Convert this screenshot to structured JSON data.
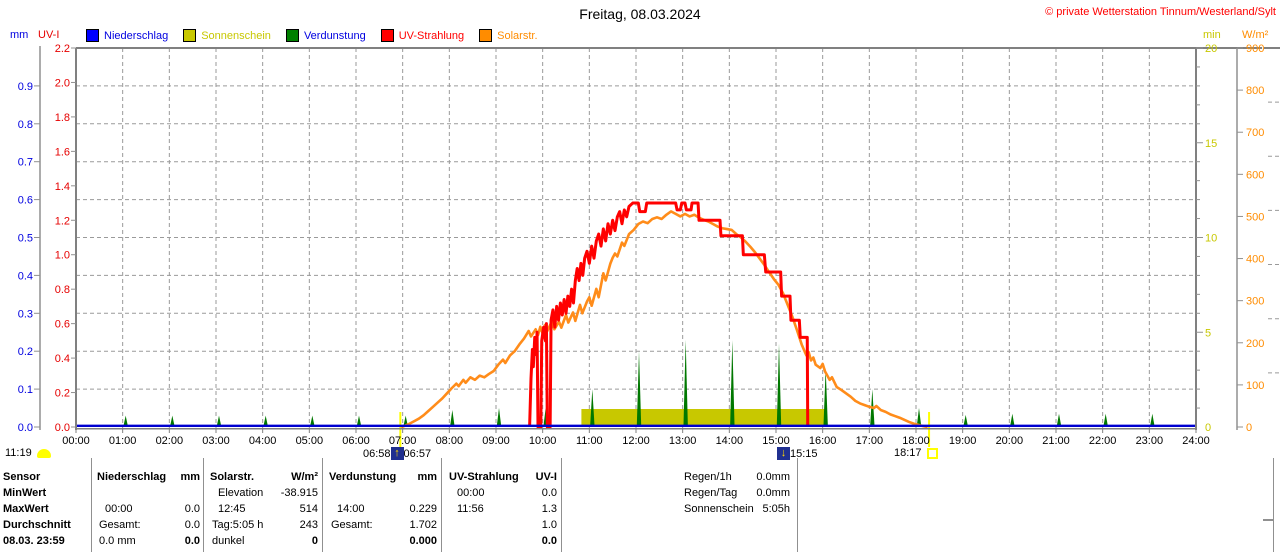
{
  "title": "Freitag, 08.03.2024",
  "copyright": "© private Wetterstation Tinnum/Westerland/Sylt",
  "axis_units": {
    "mm": "mm",
    "uvi": "UV-I",
    "min": "min",
    "wm2": "W/m²"
  },
  "legend": [
    {
      "label": "Niederschlag",
      "swatch": "#0000ff",
      "text": "#0000e0"
    },
    {
      "label": "Sonnenschein",
      "swatch": "#c8c800",
      "text": "#c8c800"
    },
    {
      "label": "Verdunstung",
      "swatch": "#008000",
      "text": "#0000e0"
    },
    {
      "label": "UV-Strahlung",
      "swatch": "#ff0000",
      "text": "#ff0000"
    },
    {
      "label": "Solarstr.",
      "swatch": "#ff8c00",
      "text": "#ff8c00"
    }
  ],
  "markers": {
    "moonrise_time": "11:19",
    "sunrise_left": "06:58",
    "sunrise_right": "06:57",
    "moonset_time": "15:15",
    "sunset_time": "18:17"
  },
  "chart_data": {
    "type": "line",
    "x_axis": {
      "labels": [
        "00:00",
        "01:00",
        "02:00",
        "03:00",
        "04:00",
        "05:00",
        "06:00",
        "07:00",
        "08:00",
        "09:00",
        "10:00",
        "11:00",
        "12:00",
        "13:00",
        "14:00",
        "15:00",
        "16:00",
        "17:00",
        "18:00",
        "19:00",
        "20:00",
        "21:00",
        "22:00",
        "23:00",
        "24:00"
      ],
      "range": [
        0,
        24
      ]
    },
    "axes": {
      "mm": {
        "color": "#0000e0",
        "max": 1.0,
        "ticks": [
          0,
          0.1,
          0.2,
          0.3,
          0.4,
          0.5,
          0.6,
          0.7,
          0.8,
          0.9
        ]
      },
      "uvi": {
        "color": "#e60000",
        "max": 2.2,
        "ticks": [
          0,
          0.2,
          0.4,
          0.6,
          0.8,
          1.0,
          1.2,
          1.4,
          1.6,
          1.8,
          2.0,
          2.2
        ]
      },
      "min": {
        "color": "#c8c800",
        "max": 20,
        "ticks": [
          0,
          5,
          10,
          15,
          20
        ]
      },
      "wm2": {
        "color": "#ff8c00",
        "max": 900,
        "ticks": [
          0,
          100,
          200,
          300,
          400,
          500,
          600,
          700,
          800,
          900
        ]
      }
    },
    "grid": {
      "h_divisions": 10,
      "v_hours": true
    },
    "sun_lines": [
      6.95,
      18.28
    ],
    "series": [
      {
        "name": "Niederschlag",
        "axis": "mm",
        "color": "#0000d0",
        "type": "line",
        "points": [
          [
            0,
            0
          ],
          [
            24,
            0
          ]
        ]
      },
      {
        "name": "Sonnenschein",
        "axis": "min",
        "color": "#c8c800",
        "type": "bar",
        "start": 10.83,
        "end": 16.07,
        "value": 0.95
      },
      {
        "name": "Verdunstung",
        "axis": "mm",
        "color": "#007800",
        "type": "spikes",
        "points": [
          [
            1,
            0.03
          ],
          [
            2,
            0.03
          ],
          [
            3,
            0.03
          ],
          [
            4,
            0.03
          ],
          [
            5,
            0.03
          ],
          [
            6,
            0.03
          ],
          [
            7,
            0.03
          ],
          [
            8,
            0.045
          ],
          [
            9,
            0.05
          ],
          [
            10,
            0.05
          ],
          [
            11,
            0.1
          ],
          [
            12,
            0.2
          ],
          [
            13,
            0.23
          ],
          [
            14,
            0.229
          ],
          [
            15,
            0.22
          ],
          [
            16,
            0.155
          ],
          [
            17,
            0.1
          ],
          [
            18,
            0.05
          ],
          [
            19,
            0.032
          ],
          [
            20,
            0.035
          ],
          [
            21,
            0.035
          ],
          [
            22,
            0.035
          ],
          [
            23,
            0.035
          ]
        ]
      },
      {
        "name": "Solarstr.",
        "axis": "wm2",
        "color": "#ff8c1a",
        "type": "line",
        "points": [
          [
            6.97,
            0
          ],
          [
            7.05,
            3
          ],
          [
            7.15,
            8
          ],
          [
            7.25,
            14
          ],
          [
            7.35,
            20
          ],
          [
            7.45,
            28
          ],
          [
            7.55,
            38
          ],
          [
            7.65,
            48
          ],
          [
            7.75,
            58
          ],
          [
            7.85,
            68
          ],
          [
            7.95,
            80
          ],
          [
            8.05,
            92
          ],
          [
            8.15,
            103
          ],
          [
            8.2,
            97
          ],
          [
            8.3,
            112
          ],
          [
            8.35,
            105
          ],
          [
            8.45,
            118
          ],
          [
            8.55,
            112
          ],
          [
            8.65,
            122
          ],
          [
            8.75,
            118
          ],
          [
            8.85,
            126
          ],
          [
            8.95,
            133
          ],
          [
            9.05,
            148
          ],
          [
            9.15,
            160
          ],
          [
            9.2,
            152
          ],
          [
            9.3,
            170
          ],
          [
            9.4,
            180
          ],
          [
            9.5,
            196
          ],
          [
            9.6,
            210
          ],
          [
            9.7,
            228
          ],
          [
            9.75,
            215
          ],
          [
            9.85,
            232
          ],
          [
            9.9,
            218
          ],
          [
            9.95,
            238
          ],
          [
            10.0,
            222
          ],
          [
            10.05,
            242
          ],
          [
            10.1,
            228
          ],
          [
            10.2,
            252
          ],
          [
            10.25,
            232
          ],
          [
            10.35,
            250
          ],
          [
            10.4,
            236
          ],
          [
            10.5,
            266
          ],
          [
            10.55,
            248
          ],
          [
            10.65,
            272
          ],
          [
            10.7,
            252
          ],
          [
            10.8,
            290
          ],
          [
            10.85,
            270
          ],
          [
            10.95,
            298
          ],
          [
            11.0,
            308
          ],
          [
            11.05,
            288
          ],
          [
            11.15,
            328
          ],
          [
            11.2,
            308
          ],
          [
            11.3,
            365
          ],
          [
            11.35,
            348
          ],
          [
            11.45,
            388
          ],
          [
            11.5,
            402
          ],
          [
            11.55,
            412
          ],
          [
            11.6,
            405
          ],
          [
            11.7,
            438
          ],
          [
            11.75,
            430
          ],
          [
            11.85,
            458
          ],
          [
            11.95,
            468
          ],
          [
            12.05,
            482
          ],
          [
            12.15,
            488
          ],
          [
            12.25,
            484
          ],
          [
            12.35,
            494
          ],
          [
            12.45,
            498
          ],
          [
            12.55,
            494
          ],
          [
            12.65,
            504
          ],
          [
            12.75,
            512
          ],
          [
            12.85,
            506
          ],
          [
            12.95,
            500
          ],
          [
            13.05,
            506
          ],
          [
            13.15,
            500
          ],
          [
            13.25,
            504
          ],
          [
            13.35,
            497
          ],
          [
            13.45,
            492
          ],
          [
            13.55,
            488
          ],
          [
            13.65,
            482
          ],
          [
            13.75,
            476
          ],
          [
            13.85,
            472
          ],
          [
            13.95,
            470
          ],
          [
            14.05,
            468
          ],
          [
            14.15,
            458
          ],
          [
            14.25,
            450
          ],
          [
            14.35,
            440
          ],
          [
            14.45,
            428
          ],
          [
            14.55,
            415
          ],
          [
            14.65,
            400
          ],
          [
            14.75,
            385
          ],
          [
            14.85,
            368
          ],
          [
            14.95,
            352
          ],
          [
            15.05,
            338
          ],
          [
            15.15,
            318
          ],
          [
            15.25,
            290
          ],
          [
            15.35,
            262
          ],
          [
            15.45,
            230
          ],
          [
            15.55,
            196
          ],
          [
            15.65,
            170
          ],
          [
            15.7,
            178
          ],
          [
            15.75,
            158
          ],
          [
            15.8,
            165
          ],
          [
            15.85,
            148
          ],
          [
            15.95,
            140
          ],
          [
            16.0,
            150
          ],
          [
            16.05,
            132
          ],
          [
            16.15,
            112
          ],
          [
            16.2,
            118
          ],
          [
            16.3,
            95
          ],
          [
            16.4,
            88
          ],
          [
            16.5,
            80
          ],
          [
            16.6,
            72
          ],
          [
            16.7,
            62
          ],
          [
            16.8,
            56
          ],
          [
            16.9,
            52
          ],
          [
            17.0,
            48
          ],
          [
            17.1,
            45
          ],
          [
            17.15,
            50
          ],
          [
            17.25,
            40
          ],
          [
            17.35,
            36
          ],
          [
            17.45,
            30
          ],
          [
            17.55,
            26
          ],
          [
            17.65,
            22
          ],
          [
            17.75,
            17
          ],
          [
            17.85,
            12
          ],
          [
            17.95,
            8
          ],
          [
            18.05,
            5
          ],
          [
            18.15,
            2
          ],
          [
            18.25,
            0
          ]
        ]
      },
      {
        "name": "UV-Strahlung",
        "axis": "uvi",
        "color": "#ff0000",
        "type": "line",
        "points": [
          [
            9.72,
            0
          ],
          [
            9.75,
            0.28
          ],
          [
            9.78,
            0.45
          ],
          [
            9.8,
            0.35
          ],
          [
            9.83,
            0.52
          ],
          [
            9.86,
            0.42
          ],
          [
            9.88,
            0.55
          ],
          [
            9.9,
            0
          ],
          [
            9.96,
            0
          ],
          [
            9.98,
            0.5
          ],
          [
            10.02,
            0.58
          ],
          [
            10.06,
            0.5
          ],
          [
            10.08,
            0.6
          ],
          [
            10.1,
            0
          ],
          [
            10.16,
            0
          ],
          [
            10.18,
            0.62
          ],
          [
            10.22,
            0.68
          ],
          [
            10.26,
            0.58
          ],
          [
            10.3,
            0.7
          ],
          [
            10.34,
            0.62
          ],
          [
            10.38,
            0.72
          ],
          [
            10.42,
            0.65
          ],
          [
            10.46,
            0.74
          ],
          [
            10.5,
            0.66
          ],
          [
            10.54,
            0.76
          ],
          [
            10.58,
            0.7
          ],
          [
            10.62,
            0.8
          ],
          [
            10.66,
            0.72
          ],
          [
            10.7,
            0.85
          ],
          [
            10.74,
            0.92
          ],
          [
            10.78,
            0.85
          ],
          [
            10.82,
            0.95
          ],
          [
            10.86,
            0.88
          ],
          [
            10.9,
            0.98
          ],
          [
            10.95,
            1.02
          ],
          [
            11.0,
            0.95
          ],
          [
            11.05,
            1.05
          ],
          [
            11.1,
            0.98
          ],
          [
            11.15,
            1.08
          ],
          [
            11.2,
            1.12
          ],
          [
            11.25,
            1.05
          ],
          [
            11.3,
            1.15
          ],
          [
            11.35,
            1.08
          ],
          [
            11.4,
            1.18
          ],
          [
            11.45,
            1.12
          ],
          [
            11.5,
            1.2
          ],
          [
            11.55,
            1.14
          ],
          [
            11.6,
            1.22
          ],
          [
            11.65,
            1.25
          ],
          [
            11.7,
            1.18
          ],
          [
            11.75,
            1.26
          ],
          [
            11.8,
            1.22
          ],
          [
            11.85,
            1.28
          ],
          [
            11.93,
            1.3
          ],
          [
            12.05,
            1.3
          ],
          [
            12.08,
            1.25
          ],
          [
            12.2,
            1.25
          ],
          [
            12.23,
            1.3
          ],
          [
            12.85,
            1.3
          ],
          [
            12.88,
            1.26
          ],
          [
            12.95,
            1.26
          ],
          [
            12.98,
            1.3
          ],
          [
            13.05,
            1.3
          ],
          [
            13.08,
            1.26
          ],
          [
            13.18,
            1.26
          ],
          [
            13.2,
            1.3
          ],
          [
            13.33,
            1.3
          ],
          [
            13.35,
            1.2
          ],
          [
            13.8,
            1.2
          ],
          [
            13.82,
            1.11
          ],
          [
            14.28,
            1.11
          ],
          [
            14.3,
            1.0
          ],
          [
            14.75,
            1.0
          ],
          [
            14.78,
            0.9
          ],
          [
            15.1,
            0.9
          ],
          [
            15.12,
            0.76
          ],
          [
            15.3,
            0.76
          ],
          [
            15.32,
            0.62
          ],
          [
            15.5,
            0.62
          ],
          [
            15.52,
            0.52
          ],
          [
            15.67,
            0.52
          ],
          [
            15.68,
            0
          ]
        ]
      }
    ]
  },
  "stats": {
    "row_labels": [
      "Sensor",
      "MinWert",
      "MaxWert",
      "Durchschnitt",
      "08.03. 23:59"
    ],
    "columns": [
      {
        "header_l": "Niederschlag",
        "header_r": "mm",
        "rows": [
          [
            "",
            ""
          ],
          [
            "00:00",
            "0.0"
          ],
          [
            "Gesamt:",
            "0.0"
          ],
          [
            "0.0 mm",
            "0.0"
          ]
        ]
      },
      {
        "header_l": "Solarstr.",
        "header_r": "W/m²",
        "rows": [
          [
            "Elevation",
            "-38.915"
          ],
          [
            "12:45",
            "514"
          ],
          [
            "Tag:5:05 h",
            "243"
          ],
          [
            "dunkel",
            "0"
          ]
        ]
      },
      {
        "header_l": "Verdunstung",
        "header_r": "mm",
        "rows": [
          [
            "",
            ""
          ],
          [
            "14:00",
            "0.229"
          ],
          [
            "Gesamt:",
            "1.702"
          ],
          [
            "",
            "0.000"
          ]
        ]
      },
      {
        "header_l": "UV-Strahlung",
        "header_r": "UV-I",
        "rows": [
          [
            "00:00",
            "0.0"
          ],
          [
            "11:56",
            "1.3"
          ],
          [
            "",
            "1.0"
          ],
          [
            "",
            "0.0"
          ]
        ]
      }
    ],
    "extra_rows": [
      [
        "Regen/1h",
        "0.0mm"
      ],
      [
        "Regen/Tag",
        "0.0mm"
      ],
      [
        "Sonnenschein",
        "5:05h"
      ]
    ]
  }
}
